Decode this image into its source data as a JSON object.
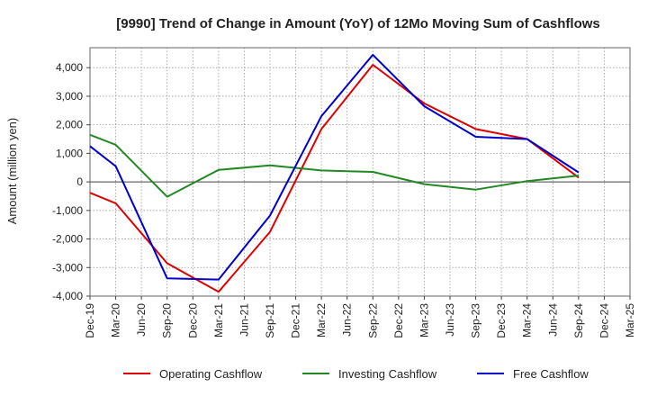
{
  "chart_data": {
    "type": "line",
    "title": "[9990]  Trend of Change in Amount (YoY) of 12Mo Moving Sum of Cashflows",
    "xlabel": "",
    "ylabel": "Amount (million yen)",
    "ylim": [
      -4000,
      4700
    ],
    "yticks": [
      -4000,
      -3000,
      -2000,
      -1000,
      0,
      1000,
      2000,
      3000,
      4000
    ],
    "ytick_labels": [
      "-4,000",
      "-3,000",
      "-2,000",
      "-1,000",
      "0",
      "1,000",
      "2,000",
      "3,000",
      "4,000"
    ],
    "categories": [
      "Dec-19",
      "Mar-20",
      "Jun-20",
      "Sep-20",
      "Dec-20",
      "Mar-21",
      "Jun-21",
      "Sep-21",
      "Dec-21",
      "Mar-22",
      "Jun-22",
      "Sep-22",
      "Dec-22",
      "Mar-23",
      "Jun-23",
      "Sep-23",
      "Dec-23",
      "Mar-24",
      "Jun-24",
      "Sep-24",
      "Dec-24",
      "Mar-25"
    ],
    "grid": true,
    "legend_position": "bottom",
    "series": [
      {
        "name": "Operating Cashflow",
        "color": "#dd0000",
        "values": [
          -380,
          -750,
          null,
          -2850,
          null,
          -3850,
          null,
          -1750,
          null,
          1850,
          null,
          4100,
          null,
          2750,
          null,
          1850,
          null,
          1500,
          null,
          150,
          null,
          null
        ]
      },
      {
        "name": "Investing Cashflow",
        "color": "#228822",
        "values": [
          1650,
          1300,
          null,
          -520,
          null,
          420,
          null,
          580,
          null,
          400,
          null,
          350,
          null,
          -80,
          null,
          -270,
          null,
          30,
          null,
          220,
          null,
          null
        ]
      },
      {
        "name": "Free Cashflow",
        "color": "#0000cc",
        "values": [
          1250,
          550,
          null,
          -3380,
          null,
          -3420,
          null,
          -1180,
          null,
          2300,
          null,
          4450,
          null,
          2650,
          null,
          1580,
          null,
          1500,
          null,
          330,
          null,
          null
        ]
      }
    ]
  }
}
